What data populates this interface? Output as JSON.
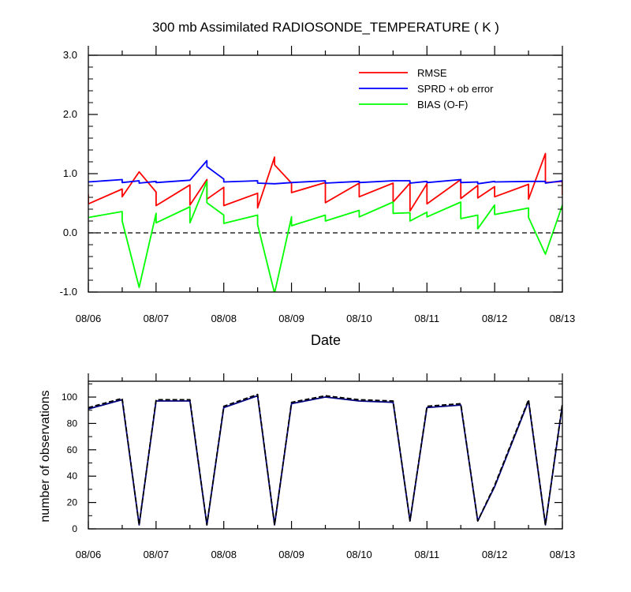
{
  "chart_data": [
    {
      "type": "line",
      "title": "300 mb Assimilated RADIOSONDE_TEMPERATURE ( K )",
      "xlabel": "Date",
      "ylabel": "",
      "xlim": [
        0,
        7
      ],
      "ylim": [
        -1.0,
        3.0
      ],
      "y_ticks": [
        -1.0,
        0.0,
        1.0,
        2.0,
        3.0
      ],
      "y_tick_labels": [
        "-1.0",
        "0.0",
        "1.0",
        "2.0",
        "3.0"
      ],
      "x_tick_labels": [
        "08/06",
        "08/07",
        "08/08",
        "08/09",
        "08/10",
        "08/11",
        "08/12",
        "08/13"
      ],
      "zero_line": "dashed",
      "grid": false,
      "legend_position": "top-right",
      "series": [
        {
          "name": "RMSE",
          "color": "#ff0000",
          "points": [
            [
              0,
              0.65
            ],
            [
              0,
              0.49
            ],
            [
              0.5,
              0.74
            ],
            [
              0.5,
              0.61
            ],
            [
              0.75,
              1.03
            ],
            [
              1,
              0.69
            ],
            [
              1,
              0.46
            ],
            [
              1.5,
              0.81
            ],
            [
              1.5,
              0.47
            ],
            [
              1.75,
              0.9
            ],
            [
              1.75,
              0.57
            ],
            [
              2,
              0.77
            ],
            [
              2,
              0.46
            ],
            [
              2.5,
              0.67
            ],
            [
              2.5,
              0.42
            ],
            [
              2.75,
              1.28
            ],
            [
              2.75,
              1.15
            ],
            [
              3,
              0.84
            ],
            [
              3,
              0.68
            ],
            [
              3.5,
              0.85
            ],
            [
              3.5,
              0.51
            ],
            [
              4,
              0.84
            ],
            [
              4,
              0.61
            ],
            [
              4.5,
              0.84
            ],
            [
              4.5,
              0.52
            ],
            [
              4.75,
              0.84
            ],
            [
              4.75,
              0.37
            ],
            [
              5,
              0.83
            ],
            [
              5,
              0.49
            ],
            [
              5.5,
              0.9
            ],
            [
              5.5,
              0.58
            ],
            [
              5.75,
              0.8
            ],
            [
              5.75,
              0.59
            ],
            [
              6,
              0.78
            ],
            [
              6,
              0.61
            ],
            [
              6.5,
              0.82
            ],
            [
              6.5,
              0.57
            ],
            [
              6.75,
              1.34
            ],
            [
              6.75,
              0.85
            ],
            [
              7,
              0.87
            ],
            [
              7,
              0.64
            ]
          ]
        },
        {
          "name": "SPRD + ob error",
          "color": "#0000ff",
          "points": [
            [
              0,
              0.86
            ],
            [
              0.5,
              0.9
            ],
            [
              0.5,
              0.85
            ],
            [
              0.75,
              0.88
            ],
            [
              0.75,
              0.84
            ],
            [
              1,
              0.87
            ],
            [
              1,
              0.85
            ],
            [
              1.5,
              0.89
            ],
            [
              1.75,
              1.22
            ],
            [
              1.75,
              1.12
            ],
            [
              2,
              0.91
            ],
            [
              2,
              0.86
            ],
            [
              2.5,
              0.88
            ],
            [
              2.5,
              0.84
            ],
            [
              2.75,
              0.83
            ],
            [
              3,
              0.85
            ],
            [
              3.5,
              0.88
            ],
            [
              3.5,
              0.84
            ],
            [
              4,
              0.87
            ],
            [
              4,
              0.85
            ],
            [
              4.5,
              0.88
            ],
            [
              4.75,
              0.88
            ],
            [
              4.75,
              0.84
            ],
            [
              5,
              0.87
            ],
            [
              5,
              0.85
            ],
            [
              5.5,
              0.9
            ],
            [
              5.5,
              0.85
            ],
            [
              5.75,
              0.86
            ],
            [
              5.75,
              0.83
            ],
            [
              6,
              0.87
            ],
            [
              6,
              0.86
            ],
            [
              6.5,
              0.87
            ],
            [
              6.75,
              0.87
            ],
            [
              6.75,
              0.84
            ],
            [
              7,
              0.88
            ],
            [
              7,
              0.86
            ]
          ]
        },
        {
          "name": "BIAS (O-F)",
          "color": "#00ff00",
          "points": [
            [
              0,
              0.26
            ],
            [
              0.5,
              0.36
            ],
            [
              0.5,
              0.2
            ],
            [
              0.75,
              -0.92
            ],
            [
              1,
              0.33
            ],
            [
              1,
              0.17
            ],
            [
              1.5,
              0.44
            ],
            [
              1.5,
              0.17
            ],
            [
              1.75,
              0.87
            ],
            [
              1.75,
              0.51
            ],
            [
              2,
              0.3
            ],
            [
              2,
              0.16
            ],
            [
              2.5,
              0.3
            ],
            [
              2.5,
              0.14
            ],
            [
              2.75,
              -1.02
            ],
            [
              3,
              0.27
            ],
            [
              3,
              0.12
            ],
            [
              3.5,
              0.3
            ],
            [
              3.5,
              0.2
            ],
            [
              4,
              0.38
            ],
            [
              4,
              0.27
            ],
            [
              4.5,
              0.52
            ],
            [
              4.5,
              0.33
            ],
            [
              4.75,
              0.34
            ],
            [
              4.75,
              0.2
            ],
            [
              5,
              0.35
            ],
            [
              5,
              0.27
            ],
            [
              5.5,
              0.52
            ],
            [
              5.5,
              0.24
            ],
            [
              5.75,
              0.3
            ],
            [
              5.75,
              0.07
            ],
            [
              6,
              0.47
            ],
            [
              6,
              0.31
            ],
            [
              6.5,
              0.42
            ],
            [
              6.5,
              0.26
            ],
            [
              6.75,
              -0.36
            ],
            [
              7,
              0.47
            ]
          ]
        }
      ]
    },
    {
      "type": "line",
      "title": "",
      "xlabel": "",
      "ylabel": "number of observations",
      "xlim": [
        0,
        7
      ],
      "ylim": [
        0,
        112
      ],
      "y_ticks": [
        0,
        20,
        40,
        60,
        80,
        100
      ],
      "y_tick_labels": [
        "0",
        "20",
        "40",
        "60",
        "80",
        "100"
      ],
      "x_tick_labels": [
        "08/06",
        "08/07",
        "08/08",
        "08/09",
        "08/10",
        "08/11",
        "08/12",
        "08/13"
      ],
      "grid": false,
      "series": [
        {
          "name": "",
          "style": "solid",
          "color": "#000080",
          "points": [
            [
              0,
              91
            ],
            [
              0.5,
              98
            ],
            [
              0.75,
              3
            ],
            [
              1,
              97
            ],
            [
              1.5,
              97
            ],
            [
              1.75,
              3
            ],
            [
              2,
              92
            ],
            [
              2.5,
              101
            ],
            [
              2.75,
              3
            ],
            [
              3,
              95
            ],
            [
              3.5,
              100
            ],
            [
              4,
              97
            ],
            [
              4.5,
              96
            ],
            [
              4.75,
              6
            ],
            [
              5,
              92
            ],
            [
              5.5,
              94
            ],
            [
              5.75,
              6
            ],
            [
              6,
              32
            ],
            [
              6.5,
              97
            ],
            [
              6.75,
              3
            ],
            [
              7,
              94
            ]
          ]
        },
        {
          "name": "",
          "style": "dashed",
          "color": "#000000",
          "points": [
            [
              0,
              92
            ],
            [
              0.5,
              99
            ],
            [
              0.75,
              3
            ],
            [
              1,
              98
            ],
            [
              1.5,
              98
            ],
            [
              1.75,
              3
            ],
            [
              2,
              93
            ],
            [
              2.5,
              102
            ],
            [
              2.75,
              3
            ],
            [
              3,
              96
            ],
            [
              3.5,
              101
            ],
            [
              4,
              98
            ],
            [
              4.5,
              97
            ],
            [
              4.75,
              6
            ],
            [
              5,
              93
            ],
            [
              5.5,
              95
            ],
            [
              5.75,
              6
            ],
            [
              6,
              33
            ],
            [
              6.5,
              98
            ],
            [
              6.75,
              3
            ],
            [
              7,
              95
            ]
          ]
        }
      ]
    }
  ]
}
